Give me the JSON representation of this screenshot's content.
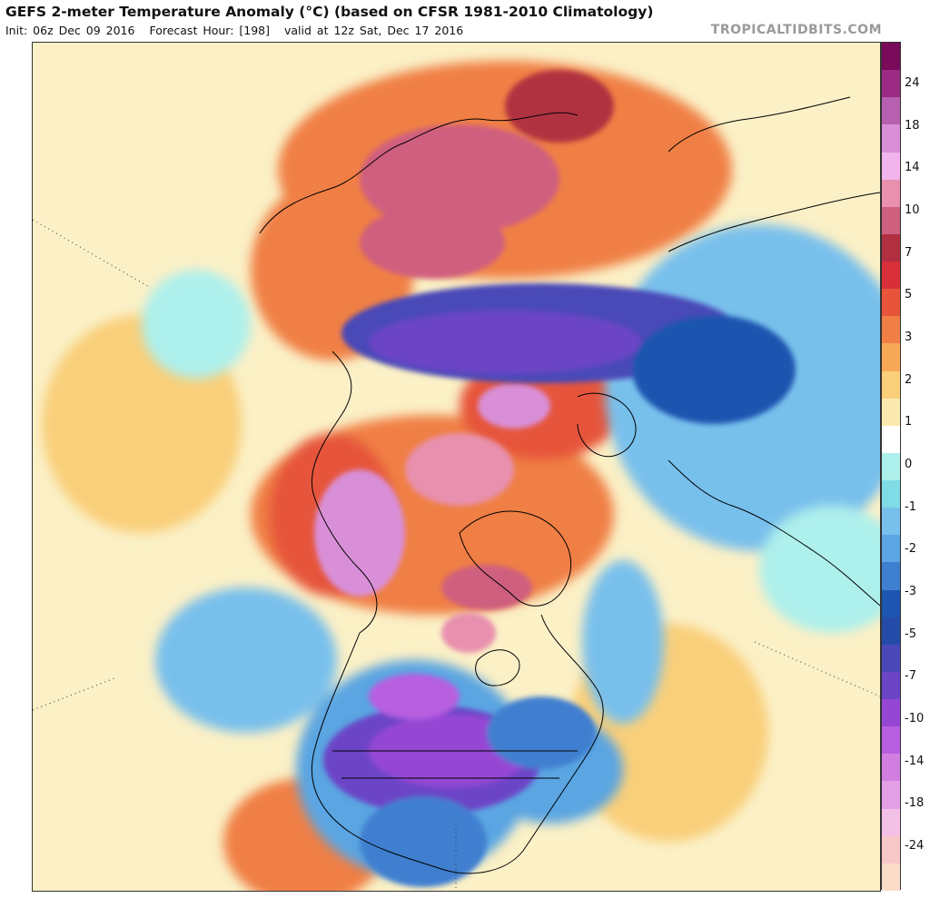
{
  "header": {
    "title": "GEFS 2-meter Temperature Anomaly (°C) (based on CFSR 1981-2010 Climatology)",
    "init": "Init: 06z Dec 09 2016",
    "forecast_hour": "Forecast Hour: [198]",
    "valid": "valid at 12z Sat, Dec 17 2016",
    "brand": "TROPICALTIDBITS.COM"
  },
  "colorbar": {
    "labels": [
      "24",
      "18",
      "14",
      "10",
      "7",
      "5",
      "3",
      "2",
      "1",
      "0",
      "-1",
      "-2",
      "-3",
      "-5",
      "-7",
      "-10",
      "-14",
      "-18",
      "-24"
    ],
    "colors": [
      "#7a0a5a",
      "#9b2a82",
      "#b860b0",
      "#d98fd8",
      "#f2b4ec",
      "#e890ae",
      "#cf5f7f",
      "#b03040",
      "#d7303a",
      "#e6553a",
      "#f07f45",
      "#f7a957",
      "#f9cf7a",
      "#fbeab0",
      "#ffffff",
      "#aef0ec",
      "#7fdbe6",
      "#78c0ec",
      "#5aa5e2",
      "#3f7fd0",
      "#1d55b0",
      "#254ba8",
      "#4a48b8",
      "#6c45c6",
      "#9546d4",
      "#b85ee0",
      "#d07fe0",
      "#e4a0e6",
      "#f3c0e6",
      "#f8c8c8",
      "#fbdcc8"
    ]
  },
  "map": {
    "colors": {
      "ocean_neutral": "#fbf0c6",
      "light_warm": "#f9cf7a",
      "warm": "#f07f45",
      "hot": "#d7303a",
      "very_hot": "#cf5f7f",
      "extreme_hot": "#d98fd8",
      "light_cold": "#aef0ec",
      "cold": "#5aa5e2",
      "very_cold": "#1d55b0",
      "extreme_cold": "#6c45c6",
      "extreme_cold_2": "#b85ee0",
      "coastline": "#000000"
    }
  }
}
